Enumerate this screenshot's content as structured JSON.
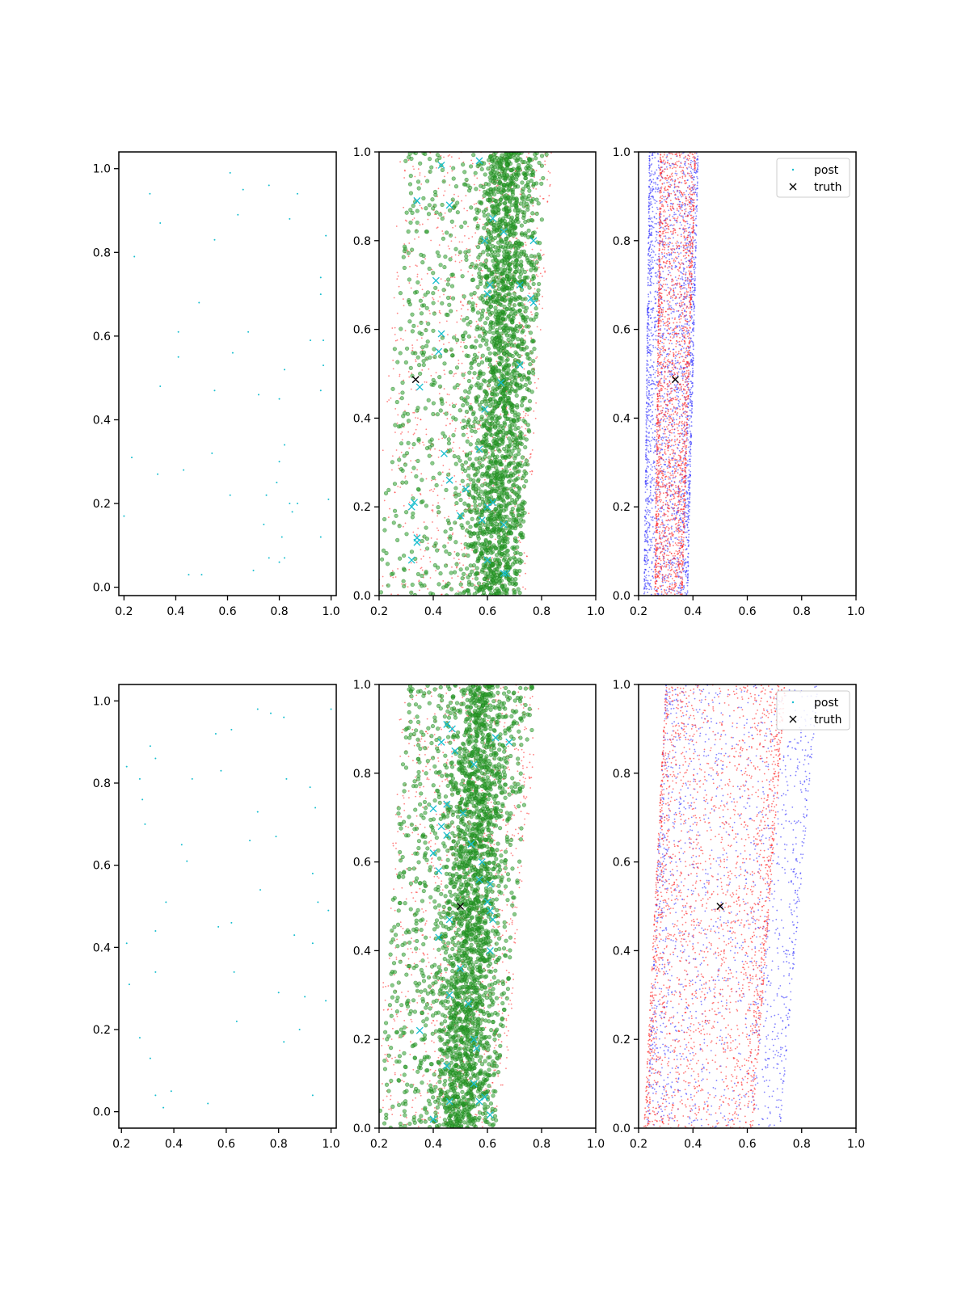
{
  "figure": {
    "rows": 2,
    "cols": 3
  },
  "chart_data": [
    {
      "panel": "row1-col1",
      "type": "scatter",
      "xlim": [
        0.18,
        1.02
      ],
      "ylim": [
        -0.02,
        1.04
      ],
      "xticks": [
        0.2,
        0.4,
        0.6,
        0.8,
        1.0
      ],
      "xtick_labels": [
        "0.2",
        "0.4",
        "0.6",
        "0.8",
        "1.0"
      ],
      "yticks": [
        0.0,
        0.2,
        0.4,
        0.6,
        0.8,
        1.0
      ],
      "ytick_labels": [
        "0.0",
        "0.2",
        "0.4",
        "0.6",
        "0.8",
        "1.0"
      ],
      "series": [
        {
          "color": "#17becf",
          "marker": "dot",
          "points": [
            [
              0.3,
              0.94
            ],
            [
              0.34,
              0.87
            ],
            [
              0.24,
              0.79
            ],
            [
              0.55,
              0.83
            ],
            [
              0.61,
              0.99
            ],
            [
              0.66,
              0.95
            ],
            [
              0.64,
              0.89
            ],
            [
              0.76,
              0.96
            ],
            [
              0.84,
              0.88
            ],
            [
              0.87,
              0.94
            ],
            [
              0.98,
              0.84
            ],
            [
              0.49,
              0.68
            ],
            [
              0.96,
              0.74
            ],
            [
              0.96,
              0.7
            ],
            [
              0.41,
              0.61
            ],
            [
              0.68,
              0.61
            ],
            [
              0.41,
              0.55
            ],
            [
              0.62,
              0.56
            ],
            [
              0.92,
              0.59
            ],
            [
              0.97,
              0.59
            ],
            [
              0.97,
              0.53
            ],
            [
              0.82,
              0.52
            ],
            [
              0.34,
              0.48
            ],
            [
              0.55,
              0.47
            ],
            [
              0.72,
              0.46
            ],
            [
              0.8,
              0.45
            ],
            [
              0.96,
              0.47
            ],
            [
              0.23,
              0.31
            ],
            [
              0.54,
              0.32
            ],
            [
              0.82,
              0.34
            ],
            [
              0.8,
              0.3
            ],
            [
              0.33,
              0.27
            ],
            [
              0.43,
              0.28
            ],
            [
              0.79,
              0.25
            ],
            [
              0.61,
              0.22
            ],
            [
              0.75,
              0.22
            ],
            [
              0.84,
              0.2
            ],
            [
              0.87,
              0.2
            ],
            [
              0.99,
              0.21
            ],
            [
              0.2,
              0.17
            ],
            [
              0.85,
              0.18
            ],
            [
              0.74,
              0.15
            ],
            [
              0.81,
              0.12
            ],
            [
              0.96,
              0.12
            ],
            [
              0.76,
              0.07
            ],
            [
              0.82,
              0.07
            ],
            [
              0.8,
              0.06
            ],
            [
              0.7,
              0.04
            ],
            [
              0.45,
              0.03
            ],
            [
              0.5,
              0.03
            ]
          ]
        }
      ]
    },
    {
      "panel": "row1-col2",
      "type": "scatter",
      "xlim": [
        0.2,
        1.0
      ],
      "ylim": [
        0.0,
        1.0
      ],
      "xticks": [
        0.2,
        0.4,
        0.6,
        0.8,
        1.0
      ],
      "xtick_labels": [
        "0.2",
        "0.4",
        "0.6",
        "0.8",
        "1.0"
      ],
      "yticks": [
        0.0,
        0.2,
        0.4,
        0.6,
        0.8,
        1.0
      ],
      "ytick_labels": [
        "0.0",
        "0.2",
        "0.4",
        "0.6",
        "0.8",
        "1.0"
      ],
      "truth": [
        0.335,
        0.487
      ],
      "cyan_x": [
        [
          0.43,
          0.97
        ],
        [
          0.57,
          0.98
        ],
        [
          0.34,
          0.89
        ],
        [
          0.46,
          0.88
        ],
        [
          0.62,
          0.85
        ],
        [
          0.66,
          0.82
        ],
        [
          0.59,
          0.8
        ],
        [
          0.77,
          0.8
        ],
        [
          0.41,
          0.71
        ],
        [
          0.61,
          0.7
        ],
        [
          0.72,
          0.7
        ],
        [
          0.6,
          0.68
        ],
        [
          0.76,
          0.67
        ],
        [
          0.77,
          0.66
        ],
        [
          0.43,
          0.59
        ],
        [
          0.42,
          0.55
        ],
        [
          0.72,
          0.52
        ],
        [
          0.65,
          0.48
        ],
        [
          0.35,
          0.47
        ],
        [
          0.59,
          0.42
        ],
        [
          0.44,
          0.32
        ],
        [
          0.57,
          0.33
        ],
        [
          0.46,
          0.26
        ],
        [
          0.52,
          0.24
        ],
        [
          0.32,
          0.2
        ],
        [
          0.33,
          0.21
        ],
        [
          0.62,
          0.21
        ],
        [
          0.6,
          0.2
        ],
        [
          0.5,
          0.18
        ],
        [
          0.58,
          0.17
        ],
        [
          0.66,
          0.16
        ],
        [
          0.34,
          0.13
        ],
        [
          0.34,
          0.12
        ],
        [
          0.32,
          0.08
        ],
        [
          0.6,
          0.08
        ],
        [
          0.66,
          0.05
        ],
        [
          0.67,
          0.05
        ]
      ],
      "cloud": {
        "green_n": 2600,
        "red_n": 1100,
        "seed": 11,
        "left_bottom": 0.2,
        "left_top": 0.3,
        "right_bottom": 0.72,
        "right_top": 0.82,
        "center_bottom": 0.62,
        "center_top": 0.68
      }
    },
    {
      "panel": "row1-col3",
      "type": "scatter",
      "xlim": [
        0.2,
        1.0
      ],
      "ylim": [
        0.0,
        1.0
      ],
      "xticks": [
        0.2,
        0.4,
        0.6,
        0.8,
        1.0
      ],
      "xtick_labels": [
        "0.2",
        "0.4",
        "0.6",
        "0.8",
        "1.0"
      ],
      "yticks": [
        0.0,
        0.2,
        0.4,
        0.6,
        0.8,
        1.0
      ],
      "ytick_labels": [
        "0.0",
        "0.2",
        "0.4",
        "0.6",
        "0.8",
        "1.0"
      ],
      "truth": [
        0.335,
        0.487
      ],
      "legend": {
        "location": "upper right",
        "entries": [
          "post",
          "truth"
        ],
        "post_color": "#17becf"
      },
      "cloud": {
        "blue_n": 2400,
        "red_n": 2200,
        "seed": 23,
        "blue_bottom": [
          0.22,
          0.38
        ],
        "blue_top": [
          0.24,
          0.42
        ],
        "red_bottom": [
          0.26,
          0.36
        ],
        "red_top": [
          0.28,
          0.41
        ]
      }
    },
    {
      "panel": "row2-col1",
      "type": "scatter",
      "xlim": [
        0.19,
        1.02
      ],
      "ylim": [
        -0.04,
        1.04
      ],
      "xticks": [
        0.2,
        0.4,
        0.6,
        0.8,
        1.0
      ],
      "xtick_labels": [
        "0.2",
        "0.4",
        "0.6",
        "0.8",
        "1.0"
      ],
      "yticks": [
        0.0,
        0.2,
        0.4,
        0.6,
        0.8,
        1.0
      ],
      "ytick_labels": [
        "0.0",
        "0.2",
        "0.4",
        "0.6",
        "0.8",
        "1.0"
      ],
      "series": [
        {
          "color": "#17becf",
          "marker": "dot",
          "points": [
            [
              0.72,
              0.98
            ],
            [
              0.77,
              0.97
            ],
            [
              0.82,
              0.96
            ],
            [
              1.0,
              0.98
            ],
            [
              0.56,
              0.92
            ],
            [
              0.62,
              0.93
            ],
            [
              0.31,
              0.89
            ],
            [
              0.33,
              0.86
            ],
            [
              0.22,
              0.84
            ],
            [
              0.58,
              0.83
            ],
            [
              0.27,
              0.81
            ],
            [
              0.47,
              0.81
            ],
            [
              0.83,
              0.81
            ],
            [
              0.28,
              0.76
            ],
            [
              0.92,
              0.79
            ],
            [
              0.94,
              0.74
            ],
            [
              0.72,
              0.73
            ],
            [
              0.29,
              0.7
            ],
            [
              0.69,
              0.66
            ],
            [
              0.79,
              0.67
            ],
            [
              0.43,
              0.65
            ],
            [
              0.45,
              0.61
            ],
            [
              0.93,
              0.58
            ],
            [
              0.73,
              0.54
            ],
            [
              0.37,
              0.51
            ],
            [
              0.95,
              0.51
            ],
            [
              0.99,
              0.49
            ],
            [
              0.62,
              0.46
            ],
            [
              0.57,
              0.45
            ],
            [
              0.22,
              0.41
            ],
            [
              0.33,
              0.44
            ],
            [
              0.86,
              0.43
            ],
            [
              0.93,
              0.41
            ],
            [
              0.33,
              0.34
            ],
            [
              0.63,
              0.34
            ],
            [
              0.23,
              0.31
            ],
            [
              0.8,
              0.29
            ],
            [
              0.9,
              0.28
            ],
            [
              0.98,
              0.27
            ],
            [
              0.64,
              0.22
            ],
            [
              0.88,
              0.2
            ],
            [
              0.27,
              0.18
            ],
            [
              0.82,
              0.17
            ],
            [
              0.31,
              0.13
            ],
            [
              0.33,
              0.04
            ],
            [
              0.39,
              0.05
            ],
            [
              0.36,
              0.01
            ],
            [
              0.53,
              0.02
            ],
            [
              0.93,
              0.04
            ]
          ]
        }
      ]
    },
    {
      "panel": "row2-col2",
      "type": "scatter",
      "xlim": [
        0.2,
        1.0
      ],
      "ylim": [
        0.0,
        1.0
      ],
      "xticks": [
        0.2,
        0.4,
        0.6,
        0.8,
        1.0
      ],
      "xtick_labels": [
        "0.2",
        "0.4",
        "0.6",
        "0.8",
        "1.0"
      ],
      "yticks": [
        0.0,
        0.2,
        0.4,
        0.6,
        0.8,
        1.0
      ],
      "ytick_labels": [
        "0.0",
        "0.2",
        "0.4",
        "0.6",
        "0.8",
        "1.0"
      ],
      "truth": [
        0.5,
        0.5
      ],
      "cyan_x": [
        [
          0.45,
          0.91
        ],
        [
          0.47,
          0.9
        ],
        [
          0.43,
          0.87
        ],
        [
          0.48,
          0.85
        ],
        [
          0.55,
          0.82
        ],
        [
          0.63,
          0.88
        ],
        [
          0.68,
          0.87
        ],
        [
          0.4,
          0.72
        ],
        [
          0.45,
          0.73
        ],
        [
          0.51,
          0.71
        ],
        [
          0.43,
          0.68
        ],
        [
          0.45,
          0.66
        ],
        [
          0.54,
          0.64
        ],
        [
          0.58,
          0.6
        ],
        [
          0.4,
          0.62
        ],
        [
          0.42,
          0.58
        ],
        [
          0.57,
          0.56
        ],
        [
          0.61,
          0.55
        ],
        [
          0.6,
          0.51
        ],
        [
          0.61,
          0.49
        ],
        [
          0.46,
          0.47
        ],
        [
          0.62,
          0.47
        ],
        [
          0.42,
          0.43
        ],
        [
          0.61,
          0.4
        ],
        [
          0.5,
          0.36
        ],
        [
          0.46,
          0.3
        ],
        [
          0.53,
          0.28
        ],
        [
          0.35,
          0.22
        ],
        [
          0.55,
          0.2
        ],
        [
          0.56,
          0.18
        ],
        [
          0.45,
          0.14
        ],
        [
          0.55,
          0.1
        ],
        [
          0.59,
          0.07
        ],
        [
          0.46,
          0.06
        ],
        [
          0.57,
          0.06
        ],
        [
          0.4,
          0.02
        ],
        [
          0.61,
          0.03
        ]
      ],
      "cloud": {
        "green_n": 2800,
        "red_n": 1100,
        "seed": 37,
        "left_bottom": 0.2,
        "left_top": 0.3,
        "right_bottom": 0.63,
        "right_top": 0.78,
        "center_bottom": 0.5,
        "center_top": 0.58
      }
    },
    {
      "panel": "row2-col3",
      "type": "scatter",
      "xlim": [
        0.2,
        1.0
      ],
      "ylim": [
        0.0,
        1.0
      ],
      "xticks": [
        0.2,
        0.4,
        0.6,
        0.8,
        1.0
      ],
      "xtick_labels": [
        "0.2",
        "0.4",
        "0.6",
        "0.8",
        "1.0"
      ],
      "yticks": [
        0.0,
        0.2,
        0.4,
        0.6,
        0.8,
        1.0
      ],
      "ytick_labels": [
        "0.0",
        "0.2",
        "0.4",
        "0.6",
        "0.8",
        "1.0"
      ],
      "truth": [
        0.5,
        0.5
      ],
      "legend": {
        "location": "upper right",
        "entries": [
          "post",
          "truth"
        ],
        "post_color": "#17becf"
      },
      "cloud": {
        "blue_n": 1600,
        "red_n": 2400,
        "seed": 53,
        "blue_bottom": [
          0.23,
          0.72
        ],
        "blue_top": [
          0.3,
          0.86
        ],
        "red_bottom": [
          0.22,
          0.62
        ],
        "red_top": [
          0.3,
          0.74
        ]
      }
    }
  ]
}
